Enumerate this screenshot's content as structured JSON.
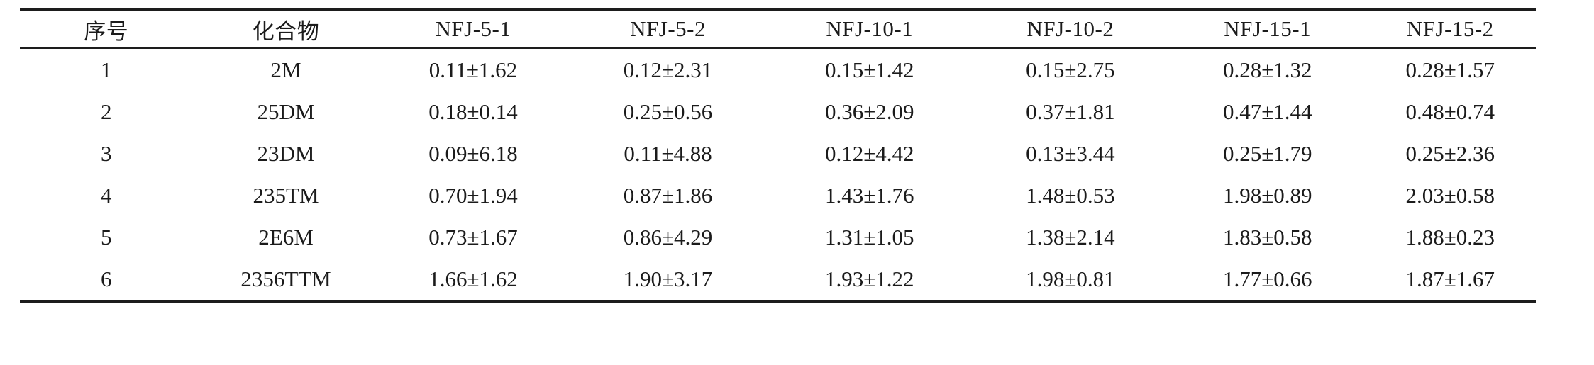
{
  "table": {
    "columns": [
      "序号",
      "化合物",
      "NFJ-5-1",
      "NFJ-5-2",
      "NFJ-10-1",
      "NFJ-10-2",
      "NFJ-15-1",
      "NFJ-15-2"
    ],
    "rows": [
      {
        "cells": [
          "1",
          "2M",
          "0.11±1.62",
          "0.12±2.31",
          "0.15±1.42",
          "0.15±2.75",
          "0.28±1.32",
          "0.28±1.57"
        ]
      },
      {
        "cells": [
          "2",
          "25DM",
          "0.18±0.14",
          "0.25±0.56",
          "0.36±2.09",
          "0.37±1.81",
          "0.47±1.44",
          "0.48±0.74"
        ]
      },
      {
        "cells": [
          "3",
          "23DM",
          "0.09±6.18",
          "0.11±4.88",
          "0.12±4.42",
          "0.13±3.44",
          "0.25±1.79",
          "0.25±2.36"
        ]
      },
      {
        "cells": [
          "4",
          "235TM",
          "0.70±1.94",
          "0.87±1.86",
          "1.43±1.76",
          "1.48±0.53",
          "1.98±0.89",
          "2.03±0.58"
        ]
      },
      {
        "cells": [
          "5",
          "2E6M",
          "0.73±1.67",
          "0.86±4.29",
          "1.31±1.05",
          "1.38±2.14",
          "1.83±0.58",
          "1.88±0.23"
        ]
      },
      {
        "cells": [
          "6",
          "2356TTM",
          "1.66±1.62",
          "1.90±3.17",
          "1.93±1.22",
          "1.98±0.81",
          "1.77±0.66",
          "1.87±1.67"
        ]
      }
    ]
  },
  "colors": {
    "text": "#1b1b1b",
    "rule": "#1d1d1d",
    "background": "#ffffff"
  }
}
